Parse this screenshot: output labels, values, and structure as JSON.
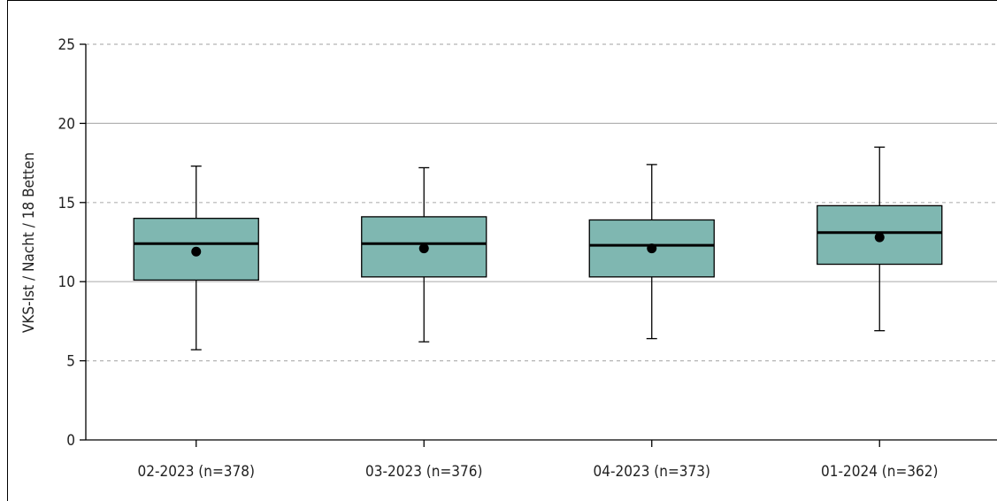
{
  "chart_data": {
    "type": "boxplot",
    "title": "",
    "xlabel": "",
    "ylabel": "VKS-Ist / Nacht / 18 Betten",
    "ylim": [
      0,
      25
    ],
    "yticks": [
      0,
      5,
      10,
      15,
      20,
      25
    ],
    "grid": {
      "solid": [
        10,
        20
      ],
      "dashed": [
        5,
        15,
        25
      ]
    },
    "colors": {
      "box_fill": "#7fb7b1",
      "stroke": "#000000",
      "grid": "#b3b3b3"
    },
    "categories": [
      "02-2023 (n=378)",
      "03-2023 (n=376)",
      "04-2023 (n=373)",
      "01-2024 (n=362)"
    ],
    "boxes": [
      {
        "whisker_low": 5.7,
        "q1": 10.1,
        "median": 12.4,
        "q3": 14.0,
        "whisker_high": 17.3,
        "mean": 11.9
      },
      {
        "whisker_low": 6.2,
        "q1": 10.3,
        "median": 12.4,
        "q3": 14.1,
        "whisker_high": 17.2,
        "mean": 12.1
      },
      {
        "whisker_low": 6.4,
        "q1": 10.3,
        "median": 12.3,
        "q3": 13.9,
        "whisker_high": 17.4,
        "mean": 12.1
      },
      {
        "whisker_low": 6.9,
        "q1": 11.1,
        "median": 13.1,
        "q3": 14.8,
        "whisker_high": 18.5,
        "mean": 12.8
      }
    ]
  }
}
